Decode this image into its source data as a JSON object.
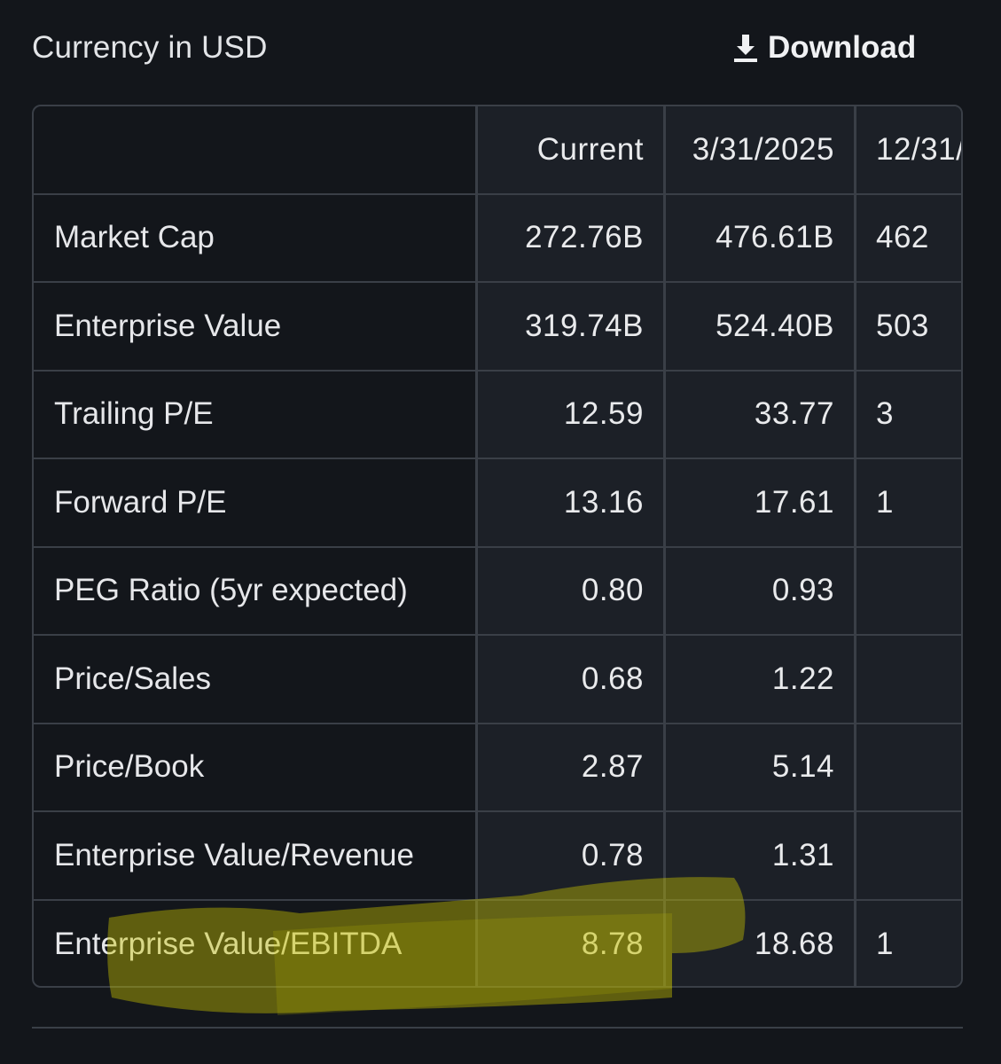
{
  "header": {
    "currency_label": "Currency in USD",
    "download_label": "Download",
    "download_icon": "download-icon"
  },
  "table": {
    "columns": [
      "",
      "Current",
      "3/31/2025",
      "12/31/"
    ],
    "rows": [
      {
        "label": "Market Cap",
        "current": "272.76B",
        "q1": "476.61B",
        "q2": "462"
      },
      {
        "label": "Enterprise Value",
        "current": "319.74B",
        "q1": "524.40B",
        "q2": "503"
      },
      {
        "label": "Trailing P/E",
        "current": "12.59",
        "q1": "33.77",
        "q2": "3"
      },
      {
        "label": "Forward P/E",
        "current": "13.16",
        "q1": "17.61",
        "q2": "1"
      },
      {
        "label": "PEG Ratio (5yr expected)",
        "current": "0.80",
        "q1": "0.93",
        "q2": ""
      },
      {
        "label": "Price/Sales",
        "current": "0.68",
        "q1": "1.22",
        "q2": ""
      },
      {
        "label": "Price/Book",
        "current": "2.87",
        "q1": "5.14",
        "q2": ""
      },
      {
        "label": "Enterprise Value/Revenue",
        "current": "0.78",
        "q1": "1.31",
        "q2": ""
      },
      {
        "label": "Enterprise Value/EBITDA",
        "current": "8.78",
        "q1": "18.68",
        "q2": "1"
      }
    ]
  },
  "colors": {
    "background": "#13161b",
    "cell_background": "#1c2027",
    "border": "#3a3f47",
    "highlighter": "#c8c300"
  }
}
